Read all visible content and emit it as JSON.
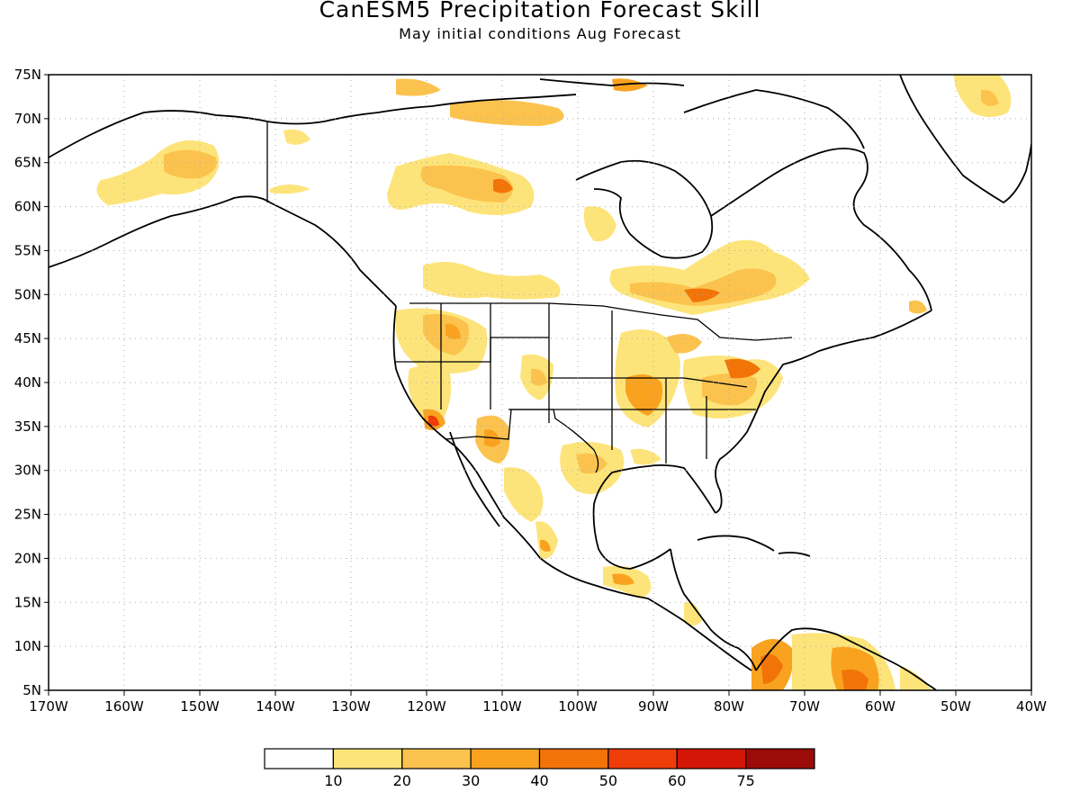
{
  "map": {
    "title": "CanESM5 Precipitation Forecast Skill",
    "subtitle": "May initial conditions  Aug Forecast",
    "lon_ticks": [
      "170W",
      "160W",
      "150W",
      "140W",
      "130W",
      "120W",
      "110W",
      "100W",
      "90W",
      "80W",
      "70W",
      "60W",
      "50W",
      "40W"
    ],
    "lat_ticks": [
      "75N",
      "70N",
      "65N",
      "60N",
      "55N",
      "50N",
      "45N",
      "40N",
      "35N",
      "30N",
      "25N",
      "20N",
      "15N",
      "10N",
      "5N"
    ],
    "lon_range": [
      -170,
      -40
    ],
    "lat_range": [
      5,
      75
    ],
    "grid": true
  },
  "colorbar": {
    "labels": [
      "10",
      "20",
      "30",
      "40",
      "50",
      "60",
      "75"
    ],
    "colors": [
      "#ffffff",
      "#fde47a",
      "#fbc34e",
      "#f9a21f",
      "#f27408",
      "#ee3d08",
      "#d31607",
      "#9b0c09"
    ]
  }
}
